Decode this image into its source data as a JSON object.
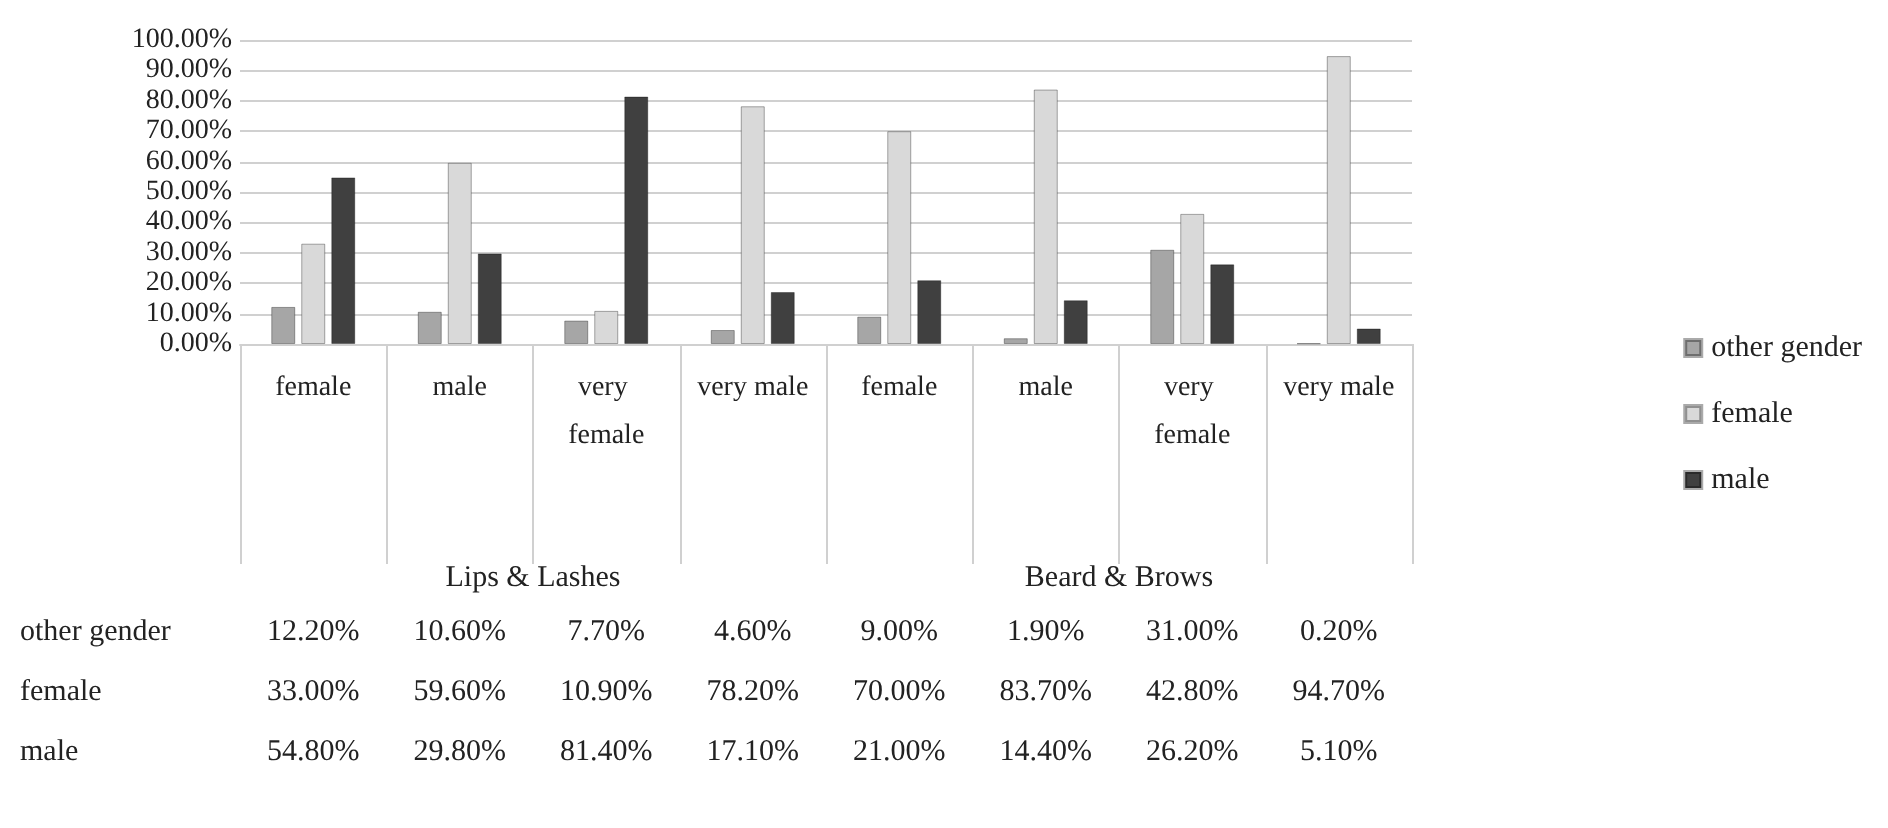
{
  "chart_data": {
    "type": "bar",
    "categories": [
      "female",
      "male",
      "very female",
      "very male",
      "female",
      "male",
      "very female",
      "very male"
    ],
    "annotations": [
      "Lips & Lashes",
      "Beard & Brows"
    ],
    "series": [
      {
        "name": "other gender",
        "color": "#a6a6a6",
        "values": [
          12.2,
          10.6,
          7.7,
          4.6,
          9.0,
          1.9,
          31.0,
          0.2
        ],
        "value_labels": [
          "12.20%",
          "10.60%",
          "7.70%",
          "4.60%",
          "9.00%",
          "1.90%",
          "31.00%",
          "0.20%"
        ]
      },
      {
        "name": "female",
        "color": "#d9d9d9",
        "values": [
          33.0,
          59.6,
          10.9,
          78.2,
          70.0,
          83.7,
          42.8,
          94.7
        ],
        "value_labels": [
          "33.00%",
          "59.60%",
          "10.90%",
          "78.20%",
          "70.00%",
          "83.70%",
          "42.80%",
          "94.70%"
        ]
      },
      {
        "name": "male",
        "color": "#404040",
        "values": [
          54.8,
          29.8,
          81.4,
          17.1,
          21.0,
          14.4,
          26.2,
          5.1
        ],
        "value_labels": [
          "54.80%",
          "29.80%",
          "81.40%",
          "17.10%",
          "21.00%",
          "14.40%",
          "26.20%",
          "5.10%"
        ]
      }
    ],
    "ylim": [
      0,
      100
    ],
    "yticks": [
      {
        "value": 0,
        "label": "0.00%"
      },
      {
        "value": 10,
        "label": "10.00%"
      },
      {
        "value": 20,
        "label": "20.00%"
      },
      {
        "value": 30,
        "label": "30.00%"
      },
      {
        "value": 40,
        "label": "40.00%"
      },
      {
        "value": 50,
        "label": "50.00%"
      },
      {
        "value": 60,
        "label": "60.00%"
      },
      {
        "value": 70,
        "label": "70.00%"
      },
      {
        "value": 80,
        "label": "80.00%"
      },
      {
        "value": 90,
        "label": "90.00%"
      },
      {
        "value": 100,
        "label": "100.00%"
      }
    ],
    "grid": "y",
    "legend": "right"
  }
}
